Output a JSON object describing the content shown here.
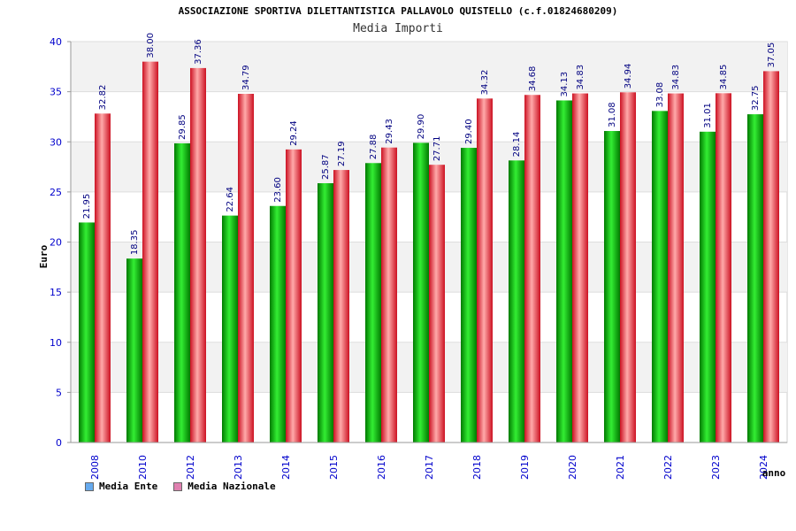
{
  "header": {
    "title": "ASSOCIAZIONE SPORTIVA DILETTANTISTICA PALLAVOLO QUISTELLO (c.f.01824680209)",
    "subtitle": "Media Importi"
  },
  "legend": {
    "items": [
      {
        "label": "Media Ente",
        "color": "#66aaee"
      },
      {
        "label": "Media Nazionale",
        "color": "#e080b0"
      }
    ]
  },
  "colors": {
    "ente_dark": "#007a00",
    "ente_light": "#33ee33",
    "naz_dark": "#cc1122",
    "naz_light": "#ffaaaa",
    "band": "#f2f2f2",
    "grid": "#dddddd"
  },
  "chart_data": {
    "type": "bar",
    "title": "Media Importi",
    "xlabel": "anno",
    "ylabel": "Euro",
    "ylim": [
      0,
      40
    ],
    "yticks": [
      0,
      5,
      10,
      15,
      20,
      25,
      30,
      35,
      40
    ],
    "grid": true,
    "legend_position": "bottom-left",
    "categories": [
      "2008",
      "2010",
      "2012",
      "2013",
      "2014",
      "2015",
      "2016",
      "2017",
      "2018",
      "2019",
      "2020",
      "2021",
      "2022",
      "2023",
      "2024"
    ],
    "series": [
      {
        "name": "Media Ente",
        "values": [
          21.95,
          18.35,
          29.85,
          22.64,
          23.6,
          25.87,
          27.88,
          29.9,
          29.4,
          28.14,
          34.13,
          31.08,
          33.08,
          31.01,
          32.75
        ],
        "labels": [
          "21.95",
          "18.35",
          "29.85",
          "22.64",
          "23.60",
          "25.87",
          "27.88",
          "29.90",
          "29.40",
          "28.14",
          "34.13",
          "31.08",
          "33.08",
          "31.01",
          "32.75"
        ]
      },
      {
        "name": "Media Nazionale",
        "values": [
          32.82,
          38.0,
          37.36,
          34.79,
          29.24,
          27.19,
          29.43,
          27.71,
          34.32,
          34.68,
          34.83,
          34.94,
          34.83,
          34.85,
          37.05
        ],
        "labels": [
          "32.82",
          "38.00",
          "37.36",
          "34.79",
          "29.24",
          "27.19",
          "29.43",
          "27.71",
          "34.32",
          "34.68",
          "34.83",
          "34.94",
          "34.83",
          "34.85",
          "37.05"
        ]
      }
    ]
  }
}
